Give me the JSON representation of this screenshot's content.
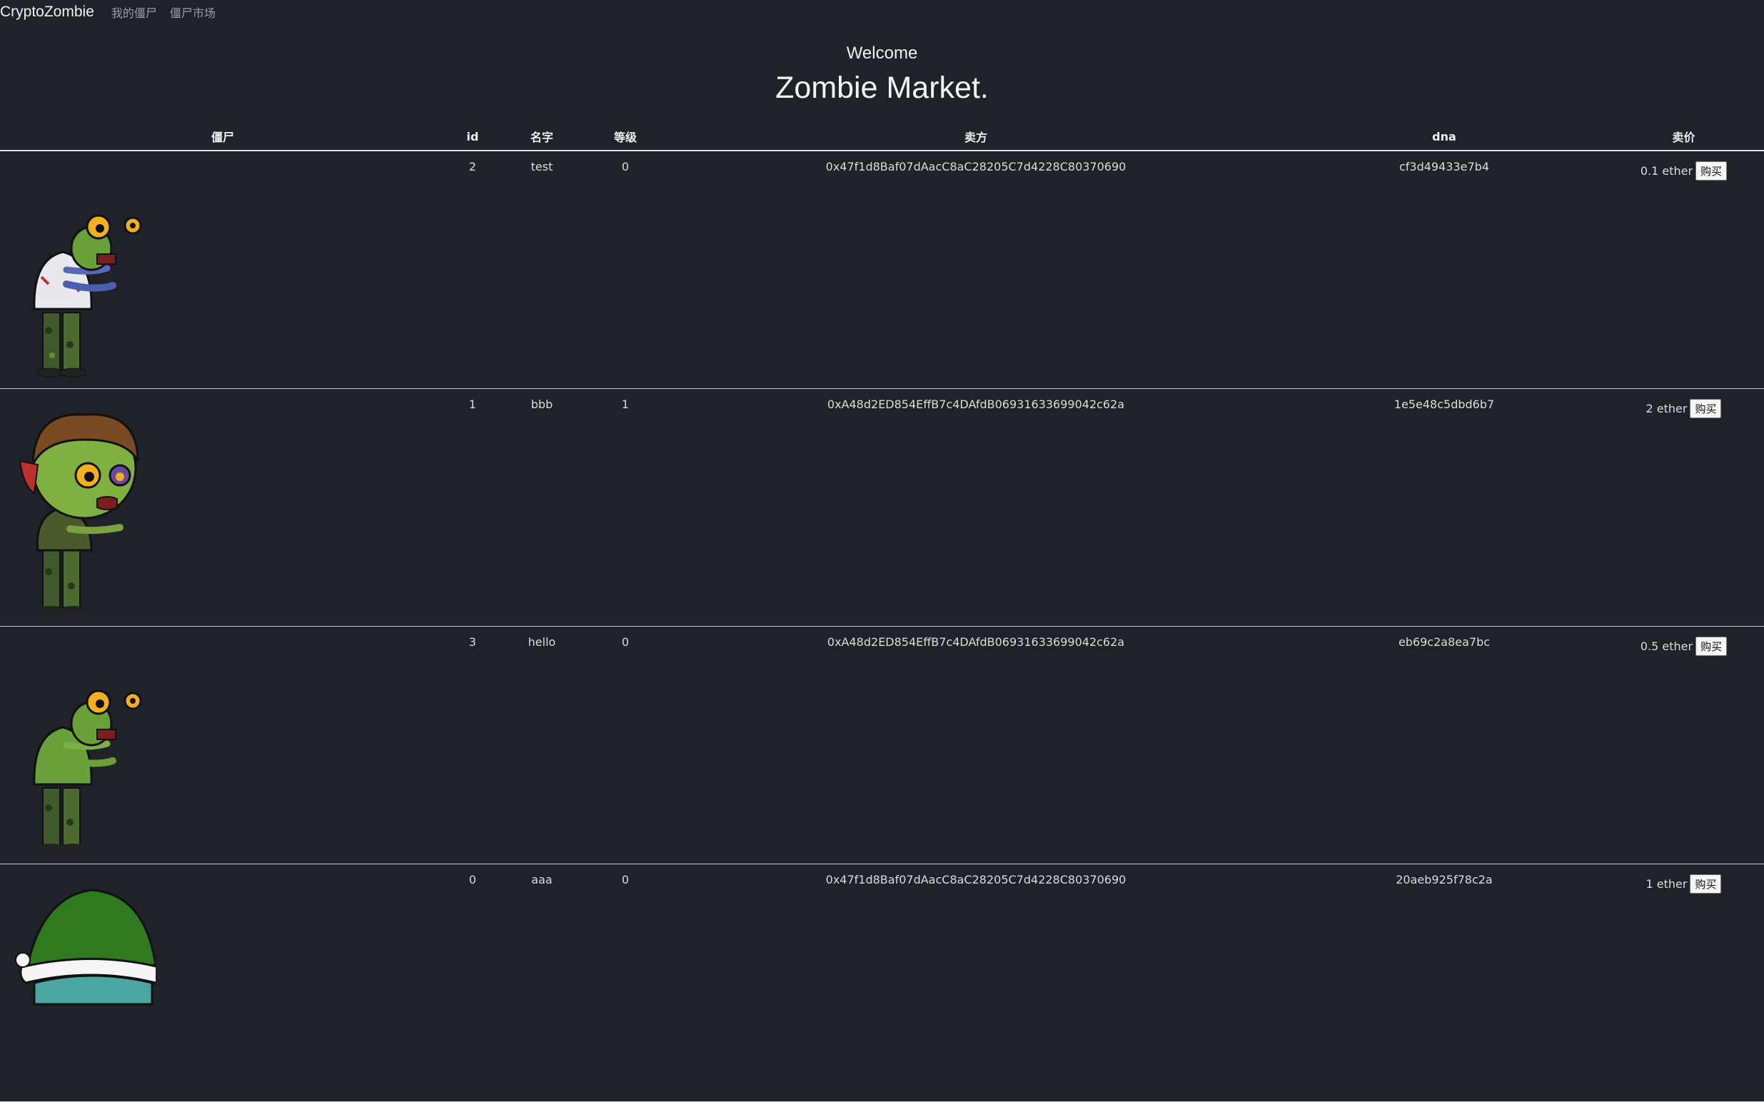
{
  "nav": {
    "brand": "CryptoZombie",
    "links": [
      "我的僵尸",
      "僵尸市场"
    ]
  },
  "hero": {
    "welcome": "Welcome",
    "title": "Zombie Market."
  },
  "table": {
    "headers": [
      "僵尸",
      "id",
      "名字",
      "等级",
      "卖方",
      "dna",
      "卖价"
    ],
    "rows": [
      {
        "id": "2",
        "name": "test",
        "level": "0",
        "seller": "0x47f1d8Baf07dAacC8aC28205C7d4228C80370690",
        "dna": "cf3d49433e7b4",
        "price": "0.1 ether",
        "buy": "购买",
        "avatar": "zombie-white-shirt-icon"
      },
      {
        "id": "1",
        "name": "bbb",
        "level": "1",
        "seller": "0xA48d2ED854EffB7c4DAfdB06931633699042c62a",
        "dna": "1e5e48c5dbd6b7",
        "price": "2 ether",
        "buy": "购买",
        "avatar": "zombie-brown-hair-icon"
      },
      {
        "id": "3",
        "name": "hello",
        "level": "0",
        "seller": "0xA48d2ED854EffB7c4DAfdB06931633699042c62a",
        "dna": "eb69c2a8ea7bc",
        "price": "0.5 ether",
        "buy": "购买",
        "avatar": "zombie-green-icon"
      },
      {
        "id": "0",
        "name": "aaa",
        "level": "0",
        "seller": "0x47f1d8Baf07dAacC8aC28205C7d4228C80370690",
        "dna": "20aeb925f78c2a",
        "price": "1 ether",
        "buy": "购买",
        "avatar": "zombie-santa-hat-icon"
      }
    ]
  },
  "colors": {
    "background": "#1f2228",
    "text": "#e6e6e6",
    "muted": "#9a9ea6"
  }
}
